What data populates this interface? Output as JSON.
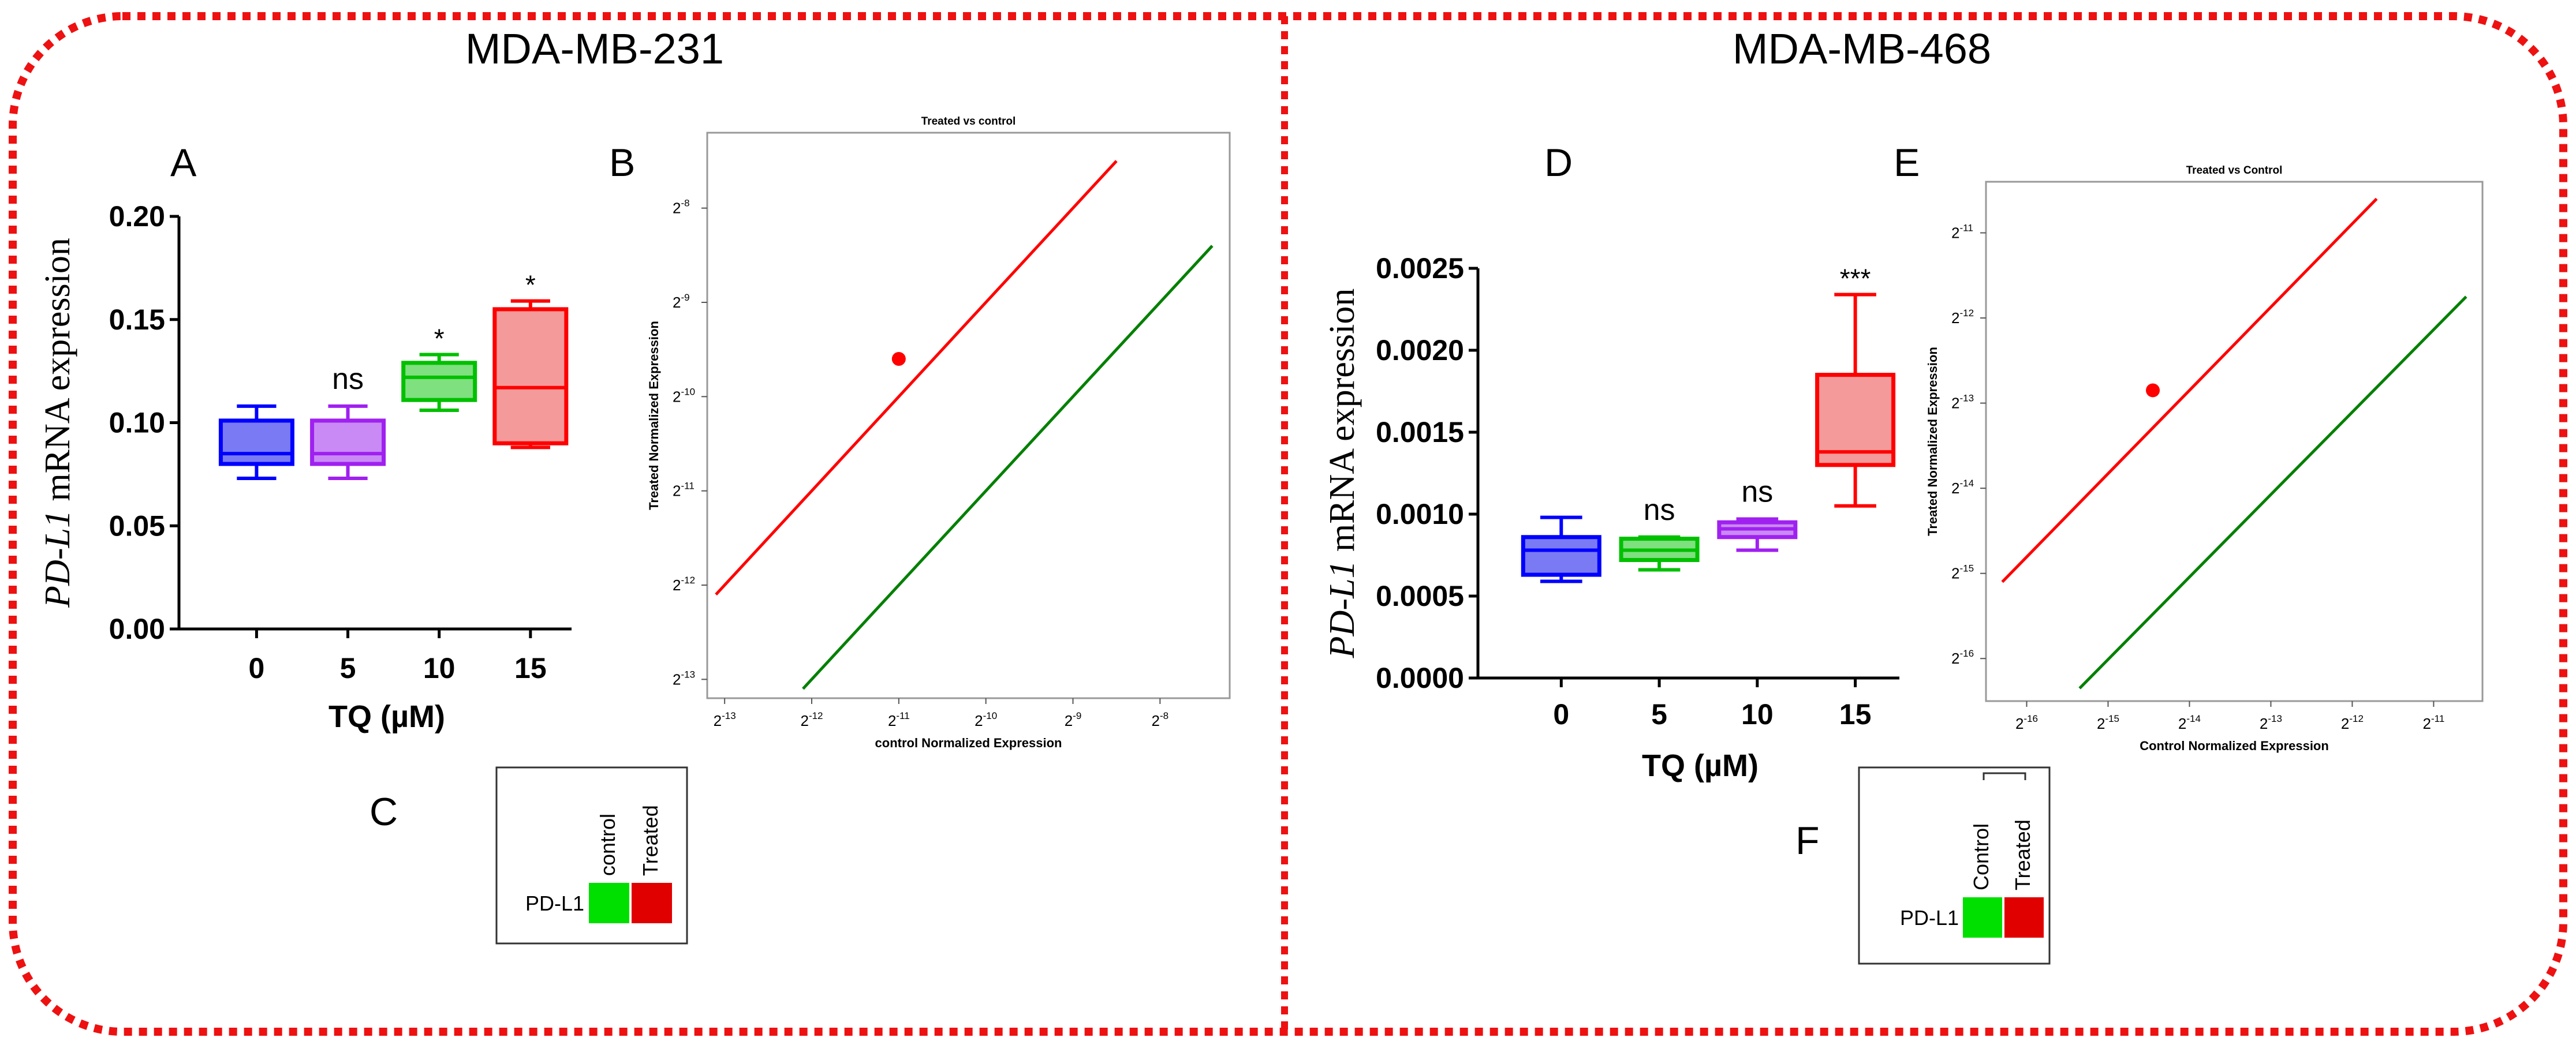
{
  "panels": {
    "left_title": "MDA-MB-231",
    "right_title": "MDA-MB-468",
    "letters": {
      "A": "A",
      "B": "B",
      "C": "C",
      "D": "D",
      "E": "E",
      "F": "F"
    }
  },
  "chart_data": [
    {
      "id": "A",
      "type": "box",
      "title": "",
      "ylabel_italic": "PD-L1",
      "ylabel_rest": " mRNA expression",
      "xlabel": "TQ (µM)",
      "categories": [
        "0",
        "5",
        "10",
        "15"
      ],
      "ylim": [
        0,
        0.2
      ],
      "yticks": [
        "0.00",
        "0.05",
        "0.10",
        "0.15",
        "0.20"
      ],
      "ytick_values": [
        0,
        0.05,
        0.1,
        0.15,
        0.2
      ],
      "boxes": [
        {
          "label": "0",
          "min": 0.073,
          "q1": 0.08,
          "median": 0.085,
          "q3": 0.101,
          "max": 0.108,
          "color": "#0000ff",
          "fill": "#7a7af5",
          "sig": ""
        },
        {
          "label": "5",
          "min": 0.073,
          "q1": 0.08,
          "median": 0.085,
          "q3": 0.101,
          "max": 0.108,
          "color": "#a020f0",
          "fill": "#c98af5",
          "sig": "ns"
        },
        {
          "label": "10",
          "min": 0.106,
          "q1": 0.111,
          "median": 0.122,
          "q3": 0.129,
          "max": 0.133,
          "color": "#00c000",
          "fill": "#7fe07f",
          "sig": "*"
        },
        {
          "label": "15",
          "min": 0.088,
          "q1": 0.09,
          "median": 0.117,
          "q3": 0.155,
          "max": 0.159,
          "color": "#ff0000",
          "fill": "#f59a9a",
          "sig": "*"
        }
      ]
    },
    {
      "id": "B",
      "type": "scatter",
      "title": "Treated vs control",
      "xlabel": "control Normalized Expression",
      "ylabel": "Treated Normalized Expression",
      "xticks": [
        "-13",
        "-12",
        "-11",
        "-10",
        "-9",
        "-8"
      ],
      "yticks": [
        "-8",
        "-9",
        "-10",
        "-11",
        "-12",
        "-13"
      ],
      "x_log2_range": [
        -13.2,
        -7.2
      ],
      "y_log2_range": [
        -13.2,
        -7.2
      ],
      "points": [
        {
          "name": "PD-L1",
          "x_log2": -11.0,
          "y_log2": -9.6,
          "color": "#ff0000"
        }
      ],
      "lines": [
        {
          "name": "upper threshold",
          "color": "#ff0000",
          "x1": -13.1,
          "y1": -12.1,
          "x2": -8.5,
          "y2": -7.5
        },
        {
          "name": "lower threshold",
          "color": "#008000",
          "x1": -12.1,
          "y1": -13.1,
          "x2": -7.4,
          "y2": -8.4
        }
      ]
    },
    {
      "id": "C",
      "type": "heatmap",
      "row_labels": [
        "PD-L1"
      ],
      "column_labels": [
        "control",
        "Treated"
      ],
      "cells": [
        {
          "row": "PD-L1",
          "column": "control",
          "color": "#00e000"
        },
        {
          "row": "PD-L1",
          "column": "Treated",
          "color": "#e00000"
        }
      ]
    },
    {
      "id": "D",
      "type": "box",
      "title": "",
      "ylabel_italic": "PD-L1",
      "ylabel_rest": " mRNA expression",
      "xlabel": "TQ (µM)",
      "categories": [
        "0",
        "5",
        "10",
        "15"
      ],
      "ylim": [
        0,
        0.0025
      ],
      "yticks": [
        "0.0000",
        "0.0005",
        "0.0010",
        "0.0015",
        "0.0020",
        "0.0025"
      ],
      "ytick_values": [
        0,
        0.0005,
        0.001,
        0.0015,
        0.002,
        0.0025
      ],
      "boxes": [
        {
          "label": "0",
          "min": 0.00059,
          "q1": 0.00063,
          "median": 0.00078,
          "q3": 0.00086,
          "max": 0.00098,
          "color": "#0000ff",
          "fill": "#7a7af5",
          "sig": ""
        },
        {
          "label": "5",
          "min": 0.00066,
          "q1": 0.00072,
          "median": 0.00078,
          "q3": 0.00085,
          "max": 0.00086,
          "color": "#00c000",
          "fill": "#7fe07f",
          "sig": "ns"
        },
        {
          "label": "10",
          "min": 0.00078,
          "q1": 0.00086,
          "median": 0.00091,
          "q3": 0.00095,
          "max": 0.00097,
          "color": "#a020f0",
          "fill": "#c98af5",
          "sig": "ns"
        },
        {
          "label": "15",
          "min": 0.00105,
          "q1": 0.0013,
          "median": 0.00138,
          "q3": 0.00185,
          "max": 0.00234,
          "color": "#ff0000",
          "fill": "#f59a9a",
          "sig": "***"
        }
      ]
    },
    {
      "id": "E",
      "type": "scatter",
      "title": "Treated vs Control",
      "xlabel": "Control Normalized Expression",
      "ylabel": "Treated Normalized Expression",
      "xticks": [
        "-16",
        "-15",
        "-14",
        "-13",
        "-12",
        "-11"
      ],
      "yticks": [
        "-11",
        "-12",
        "-13",
        "-14",
        "-15",
        "-16"
      ],
      "x_log2_range": [
        -16.5,
        -10.4
      ],
      "y_log2_range": [
        -16.5,
        -10.4
      ],
      "points": [
        {
          "name": "PD-L1",
          "x_log2": -14.45,
          "y_log2": -12.85,
          "color": "#ff0000"
        }
      ],
      "lines": [
        {
          "name": "upper threshold",
          "color": "#ff0000",
          "x1": -16.3,
          "y1": -15.1,
          "x2": -11.7,
          "y2": -10.6
        },
        {
          "name": "lower threshold",
          "color": "#008000",
          "x1": -15.35,
          "y1": -16.35,
          "x2": -10.6,
          "y2": -11.75
        }
      ]
    },
    {
      "id": "F",
      "type": "heatmap",
      "row_labels": [
        "PD-L1"
      ],
      "column_labels": [
        "Control",
        "Treated"
      ],
      "cells": [
        {
          "row": "PD-L1",
          "column": "Control",
          "color": "#00e000"
        },
        {
          "row": "PD-L1",
          "column": "Treated",
          "color": "#e00000"
        }
      ]
    }
  ]
}
